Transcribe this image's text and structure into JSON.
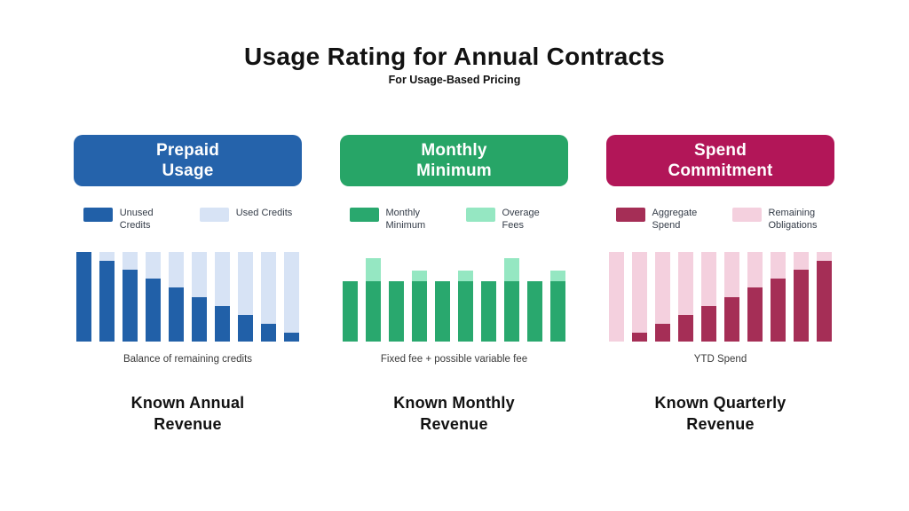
{
  "header": {
    "title": "Usage Rating for Annual Contracts",
    "subtitle": "For Usage-Based Pricing"
  },
  "panels": [
    {
      "id": "prepaid-usage",
      "title_lines": [
        "Prepaid",
        "Usage"
      ],
      "header_color": "#2563ab",
      "legend": [
        {
          "label": "Unused Credits",
          "color": "#2160a8"
        },
        {
          "label": "Used Credits",
          "color": "#d7e3f5"
        }
      ],
      "caption": "Balance of remaining credits",
      "footer_lines": [
        "Known Annual",
        "Revenue"
      ]
    },
    {
      "id": "monthly-minimum",
      "title_lines": [
        "Monthly",
        "Minimum"
      ],
      "header_color": "#27a567",
      "legend": [
        {
          "label": "Monthly Minimum",
          "color": "#29a86e"
        },
        {
          "label": "Overage Fees",
          "color": "#95e7c2"
        }
      ],
      "caption": "Fixed fee + possible variable fee",
      "footer_lines": [
        "Known Monthly",
        "Revenue"
      ]
    },
    {
      "id": "spend-commitment",
      "title_lines": [
        "Spend",
        "Commitment"
      ],
      "header_color": "#b21658",
      "legend": [
        {
          "label": "Aggregate Spend",
          "color": "#a52e56"
        },
        {
          "label": "Remaining Obligations",
          "color": "#f4d0de"
        }
      ],
      "caption": "YTD Spend",
      "footer_lines": [
        "Known Quarterly",
        "Revenue"
      ]
    }
  ],
  "chart_data": [
    {
      "type": "bar",
      "stacked": true,
      "title": "Prepaid Usage",
      "annotation": "Balance of remaining credits",
      "n_bars": 10,
      "ymax": 100,
      "grid": false,
      "legend_position": "top",
      "series": [
        {
          "name": "Unused Credits",
          "color": "#2160a8",
          "values": [
            100,
            90,
            80,
            70,
            60,
            50,
            40,
            30,
            20,
            10
          ]
        },
        {
          "name": "Used Credits",
          "color": "#d7e3f5",
          "values": [
            0,
            10,
            20,
            30,
            40,
            50,
            60,
            70,
            80,
            90
          ]
        }
      ]
    },
    {
      "type": "bar",
      "stacked": true,
      "title": "Monthly Minimum",
      "annotation": "Fixed fee + possible variable fee",
      "n_bars": 10,
      "ymax": 100,
      "grid": false,
      "legend_position": "top",
      "series": [
        {
          "name": "Monthly Minimum",
          "color": "#29a86e",
          "values": [
            67,
            67,
            67,
            67,
            67,
            67,
            67,
            67,
            67,
            67
          ]
        },
        {
          "name": "Overage Fees",
          "color": "#95e7c2",
          "values": [
            0,
            26,
            0,
            12,
            0,
            12,
            0,
            26,
            0,
            12
          ]
        }
      ]
    },
    {
      "type": "bar",
      "stacked": true,
      "title": "Spend Commitment",
      "annotation": "YTD Spend",
      "n_bars": 10,
      "ymax": 100,
      "grid": false,
      "legend_position": "top",
      "series": [
        {
          "name": "Aggregate Spend",
          "color": "#a52e56",
          "values": [
            0,
            10,
            20,
            30,
            40,
            50,
            60,
            70,
            80,
            90
          ]
        },
        {
          "name": "Remaining Obligations",
          "color": "#f4d0de",
          "values": [
            100,
            90,
            80,
            70,
            60,
            50,
            40,
            30,
            20,
            10
          ]
        }
      ]
    }
  ]
}
